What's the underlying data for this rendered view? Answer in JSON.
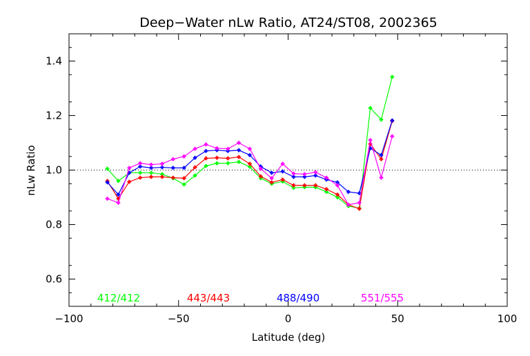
{
  "chart_data": {
    "type": "line",
    "title": "Deep−Water nLw Ratio, AT24/ST08, 2002365",
    "xlabel": "Latitude (deg)",
    "ylabel": "nLw Ratio",
    "xlim": [
      -100,
      100
    ],
    "ylim": [
      0.5,
      1.5
    ],
    "xticks": [
      -100,
      -50,
      0,
      50,
      100
    ],
    "xtick_labels": [
      "−100",
      "−50",
      "0",
      "50",
      "100"
    ],
    "yticks": [
      0.6,
      0.8,
      1.0,
      1.2,
      1.4
    ],
    "ytick_labels": [
      "0.6",
      "0.8",
      "1.0",
      "1.2",
      "1.4"
    ],
    "reference_line": 1.0,
    "legend_placement": "bottom-inside",
    "x": [
      -82.5,
      -77.5,
      -72.5,
      -67.5,
      -62.5,
      -57.5,
      -52.5,
      -47.5,
      -42.5,
      -37.5,
      -32.5,
      -27.5,
      -22.5,
      -17.5,
      -12.5,
      -7.5,
      -2.5,
      2.5,
      7.5,
      12.5,
      17.5,
      22.5,
      27.5,
      32.5,
      37.5,
      42.5,
      47.5
    ],
    "series": [
      {
        "name": "412/412",
        "color": "#00ff00",
        "values": [
          1.005,
          0.96,
          0.99,
          0.99,
          0.99,
          0.985,
          0.97,
          0.947,
          0.98,
          1.015,
          1.025,
          1.025,
          1.03,
          1.012,
          0.97,
          0.95,
          0.958,
          0.935,
          0.937,
          0.937,
          0.92,
          0.9,
          0.868,
          0.86,
          1.228,
          1.185,
          1.342
        ]
      },
      {
        "name": "443/443",
        "color": "#ff0000",
        "values": [
          0.96,
          0.895,
          0.957,
          0.972,
          0.975,
          0.975,
          0.972,
          0.97,
          1.01,
          1.043,
          1.045,
          1.043,
          1.048,
          1.023,
          0.977,
          0.955,
          0.965,
          0.944,
          0.944,
          0.944,
          0.93,
          0.91,
          0.873,
          0.858,
          1.096,
          1.04,
          1.18
        ]
      },
      {
        "name": "488/490",
        "color": "#0000ff",
        "values": [
          0.955,
          0.91,
          0.99,
          1.013,
          1.008,
          1.01,
          1.008,
          1.008,
          1.045,
          1.07,
          1.073,
          1.07,
          1.073,
          1.055,
          1.013,
          0.99,
          0.995,
          0.975,
          0.975,
          0.98,
          0.965,
          0.955,
          0.92,
          0.915,
          1.08,
          1.055,
          1.182
        ]
      },
      {
        "name": "551/555",
        "color": "#ff00ff",
        "values": [
          0.895,
          0.88,
          1.008,
          1.025,
          1.02,
          1.023,
          1.04,
          1.05,
          1.078,
          1.094,
          1.08,
          1.078,
          1.1,
          1.078,
          1.005,
          0.97,
          1.023,
          0.987,
          0.985,
          0.992,
          0.972,
          0.944,
          0.873,
          0.88,
          1.11,
          0.972,
          1.124
        ]
      }
    ]
  }
}
